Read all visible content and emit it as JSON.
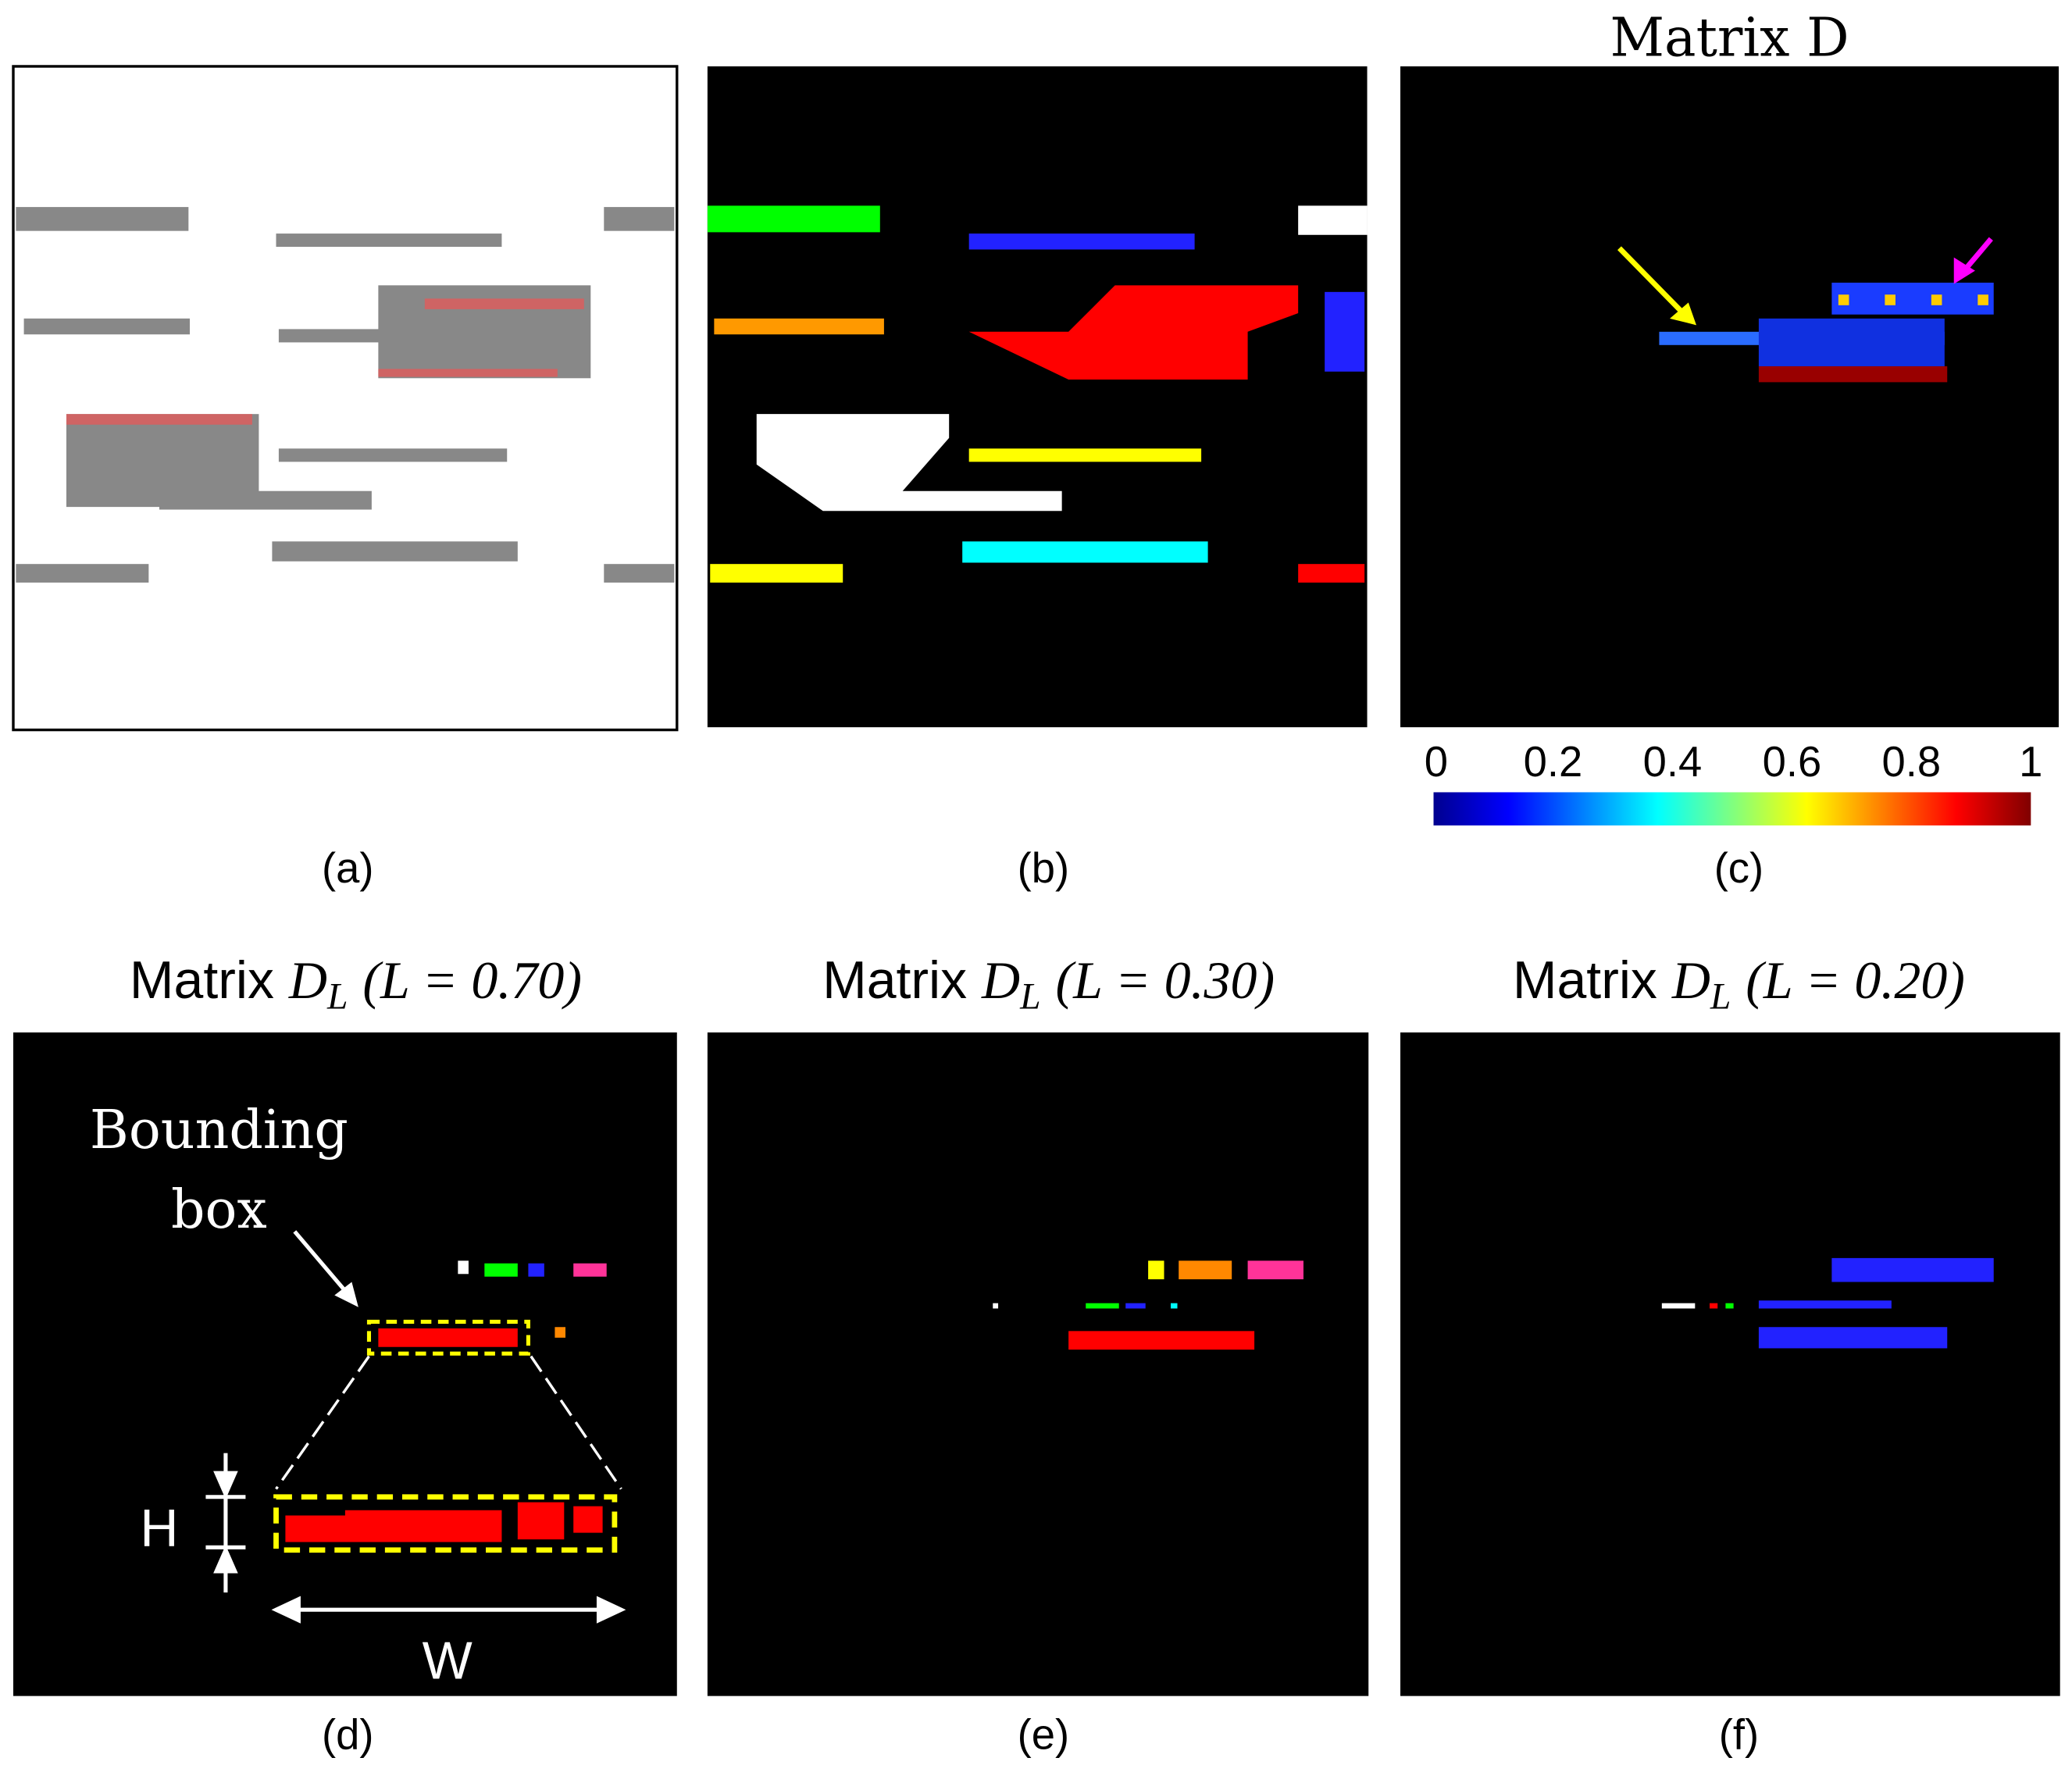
{
  "panels": [
    {
      "caption": "(a)"
    },
    {
      "caption": "(b)"
    },
    {
      "caption": "(c)",
      "title": "Matrix D",
      "colorbar": {
        "ticks": [
          0,
          0.2,
          0.4,
          0.6,
          0.8,
          1
        ]
      }
    },
    {
      "caption": "(d)",
      "title": {
        "word": "Matrix",
        "symbol": "D",
        "subscript": "L",
        "condition": "(L = 0.70)"
      },
      "annotations": {
        "box_line1": "Bounding",
        "box_line2": "box",
        "height": "H",
        "width": "W"
      }
    },
    {
      "caption": "(e)",
      "title": {
        "word": "Matrix",
        "symbol": "D",
        "subscript": "L",
        "condition": "(L = 0.30)"
      }
    },
    {
      "caption": "(f)",
      "title": {
        "word": "Matrix",
        "symbol": "D",
        "subscript": "L",
        "condition": "(L = 0.20)"
      }
    }
  ]
}
